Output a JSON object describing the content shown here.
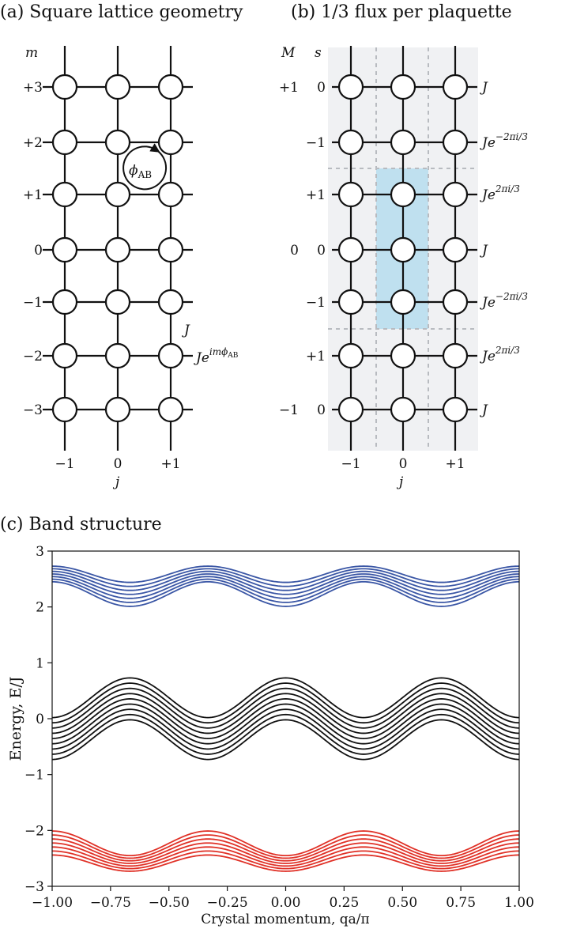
{
  "panel_a": {
    "caption": "(a) Square lattice geometry",
    "m_axis_label": "m",
    "m_ticks": [
      "+3",
      "+2",
      "+1",
      "0",
      "−1",
      "−2",
      "−3"
    ],
    "j_ticks": [
      "−1",
      "0",
      "+1"
    ],
    "j_axis_label": "j",
    "flux_label": "ϕ",
    "flux_sub": "AB",
    "hop_label": "J",
    "hop_phase_label": "Je",
    "hop_phase_exp": "imϕ",
    "hop_phase_exp_sub": "AB"
  },
  "panel_b": {
    "caption": "(b) 1/3 flux per plaquette",
    "M_axis_label": "M",
    "s_axis_label": "s",
    "M_values": [
      "+1",
      "",
      "",
      "0",
      "",
      "",
      "−1"
    ],
    "s_values": [
      "0",
      "−1",
      "+1",
      "0",
      "−1",
      "+1",
      "0"
    ],
    "row_hoppings": [
      {
        "base": "J",
        "exp": ""
      },
      {
        "base": "Je",
        "exp": "−2πi/3"
      },
      {
        "base": "Je",
        "exp": "2πi/3"
      },
      {
        "base": "J",
        "exp": ""
      },
      {
        "base": "Je",
        "exp": "−2πi/3"
      },
      {
        "base": "Je",
        "exp": "2πi/3"
      },
      {
        "base": "J",
        "exp": ""
      }
    ],
    "j_ticks": [
      "−1",
      "0",
      "+1"
    ],
    "j_axis_label": "j",
    "highlight_color": "#bfe0ef",
    "background_color": "#f0f1f3"
  },
  "panel_c": {
    "caption": "(c) Band structure",
    "chart_data": {
      "type": "line",
      "xlabel": "Crystal momentum, qa/π",
      "ylabel": "Energy, E/J",
      "xlim": [
        -1.0,
        1.0
      ],
      "ylim": [
        -3,
        3
      ],
      "x_ticks": [
        "−1.00",
        "−0.75",
        "−0.50",
        "−0.25",
        "0.00",
        "0.25",
        "0.50",
        "0.75",
        "1.00"
      ],
      "y_ticks": [
        "−3",
        "−2",
        "−1",
        "0",
        "1",
        "2",
        "3"
      ],
      "grid": false,
      "series": [
        {
          "color": "#3a56a5",
          "values_at": {
            "qa/pi": [
              -1.0,
              -0.667,
              -0.333,
              0.0,
              0.333,
              0.667,
              1.0
            ]
          },
          "upper_envelope": [
            2.73,
            2.44,
            2.73,
            2.44,
            2.73,
            2.44,
            2.73
          ],
          "lower_envelope": [
            2.45,
            2.01,
            2.45,
            2.01,
            2.45,
            2.01,
            2.45
          ],
          "lines": 7
        },
        {
          "color": "#111111",
          "values_at": {
            "qa/pi": [
              -1.0,
              -0.667,
              -0.333,
              0.0,
              0.333,
              0.667,
              1.0
            ]
          },
          "upper_envelope": [
            0.02,
            0.73,
            0.02,
            0.73,
            0.02,
            0.73,
            0.02
          ],
          "lower_envelope": [
            -0.73,
            -0.02,
            -0.73,
            -0.02,
            -0.73,
            -0.02,
            -0.73
          ],
          "lines": 9
        },
        {
          "color": "#e03127",
          "values_at": {
            "qa/pi": [
              -1.0,
              -0.667,
              -0.333,
              0.0,
              0.333,
              0.667,
              1.0
            ]
          },
          "upper_envelope": [
            -2.01,
            -2.45,
            -2.01,
            -2.45,
            -2.01,
            -2.45,
            -2.01
          ],
          "lower_envelope": [
            -2.44,
            -2.73,
            -2.44,
            -2.73,
            -2.44,
            -2.73,
            -2.44
          ],
          "lines": 7
        }
      ]
    }
  }
}
